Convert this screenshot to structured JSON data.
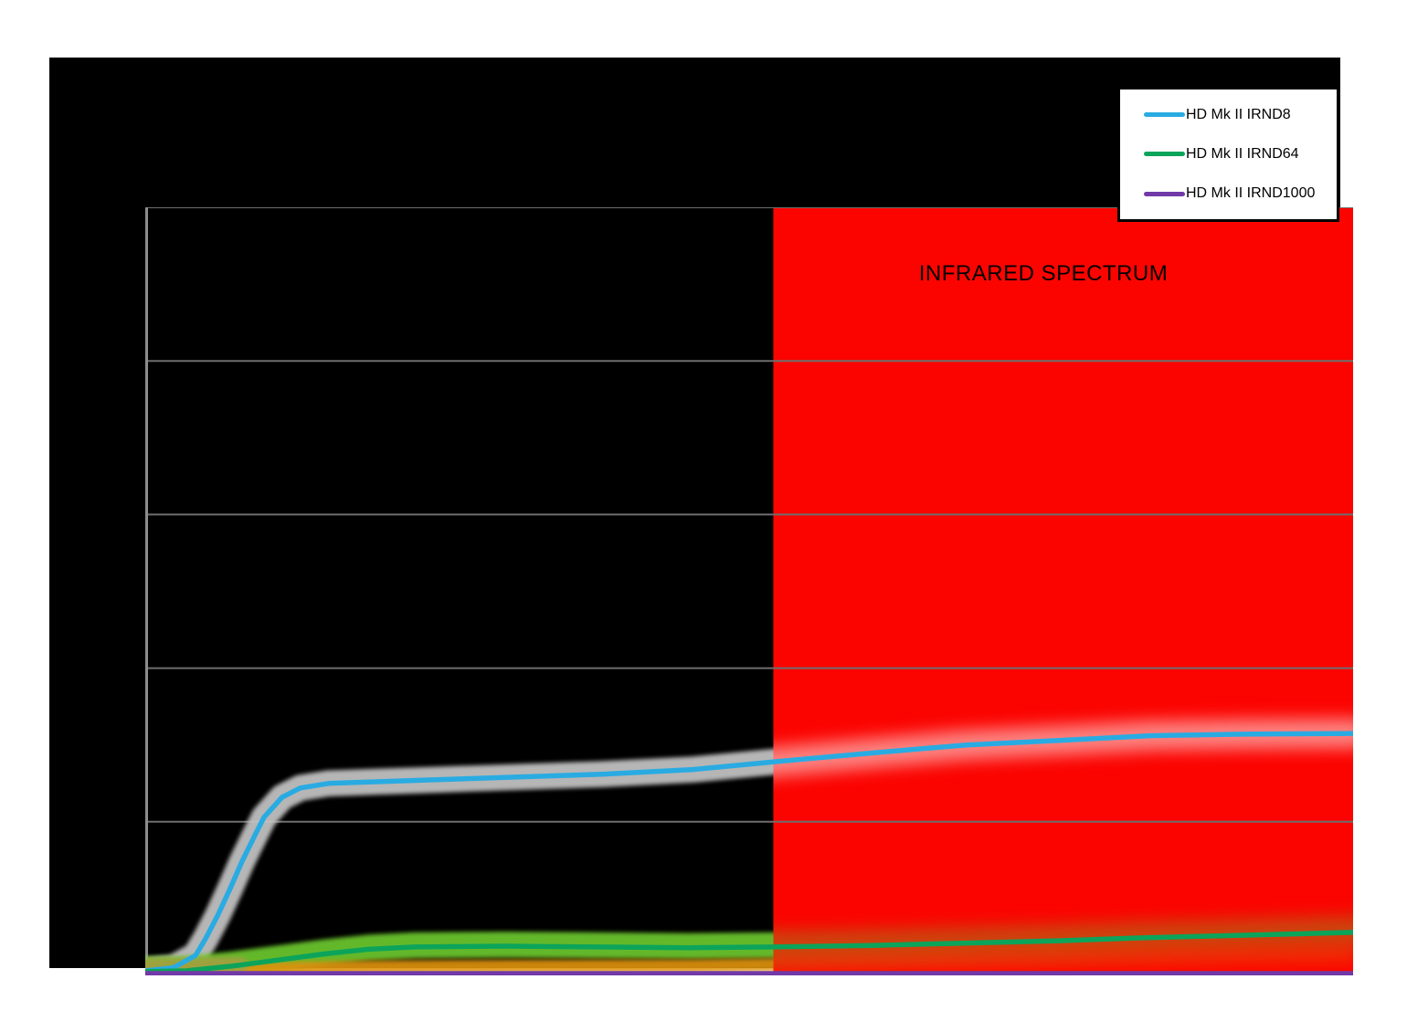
{
  "infrared_label": "INFRARED SPECTRUM",
  "legend": {
    "entries": [
      {
        "label": "HD Mk II IRND8",
        "color": "#29ABE2"
      },
      {
        "label": "HD Mk II IRND64",
        "color": "#0CA45A"
      },
      {
        "label": "HD Mk II IRND1000",
        "color": "#7239A8"
      }
    ]
  },
  "frame": {
    "page_bg": "#FFFFFF",
    "plot_bg": "#000000",
    "axis_color": "#8C8C8C",
    "gridline_color": "#6E6E6E"
  },
  "chart_data": {
    "type": "line",
    "title": "",
    "xlabel": "",
    "ylabel": "",
    "axis_tick_labels_visible": false,
    "x_range_nm_est": [
      390,
      990
    ],
    "y_range_pct_est": [
      0,
      50
    ],
    "gridlines": {
      "horizontal_fractions": [
        0,
        0.2,
        0.4,
        0.6,
        0.8,
        1.0
      ],
      "color": "#6E6E6E"
    },
    "infrared_region": {
      "label": "INFRARED SPECTRUM",
      "starts_nm_est": 702,
      "color": "#FB0400",
      "text_color": "#000000"
    },
    "legend_position": "top-right",
    "series": [
      {
        "name": "HD Mk II IRND8",
        "color": "#29ABE2",
        "x_nm": [
          390,
          404,
          415,
          420,
          426,
          432,
          438,
          444,
          449,
          458,
          467,
          481,
          503,
          526,
          572,
          617,
          662,
          702,
          753,
          798,
          844,
          889,
          935,
          990
        ],
        "transmission_pct": [
          0.3,
          0.5,
          1.3,
          2.4,
          3.9,
          5.6,
          7.4,
          9.0,
          10.3,
          11.6,
          12.2,
          12.5,
          12.6,
          12.7,
          12.9,
          13.1,
          13.4,
          13.9,
          14.5,
          15.0,
          15.3,
          15.6,
          15.7,
          15.75
        ]
      },
      {
        "name": "HD Mk II IRND64",
        "color": "#0CA45A",
        "x_nm": [
          390,
          410,
          433,
          456,
          479,
          501,
          524,
          569,
          615,
          660,
          702,
          751,
          796,
          842,
          887,
          932,
          990
        ],
        "transmission_pct": [
          0.25,
          0.3,
          0.6,
          1.0,
          1.4,
          1.7,
          1.85,
          1.9,
          1.85,
          1.8,
          1.85,
          1.95,
          2.1,
          2.25,
          2.45,
          2.6,
          2.8
        ]
      },
      {
        "name": "HD Mk II IRND1000",
        "color": "#7239A8",
        "x_nm": [
          390,
          990
        ],
        "transmission_pct": [
          0.12,
          0.12
        ]
      }
    ],
    "scatter_bands": [
      {
        "name": "irnd8-sample-spread",
        "follows": "HD Mk II IRND8",
        "color": "#C6C6C6",
        "offset_pct": 0,
        "half_width_pct": 0.85,
        "red_side_color": "#FFFFFF",
        "red_side_opacity": 0.5
      },
      {
        "name": "irnd64-sample-spread",
        "follows": "HD Mk II IRND64",
        "color": "#6CC82F",
        "offset_pct": 0.1,
        "half_width_pct": 0.85,
        "red_side_color": "#6CC82F",
        "red_side_opacity": 0.32
      },
      {
        "name": "low-transmission-spread",
        "color": "#DD9208",
        "x_nm": [
          390,
          420,
          456,
          501,
          569,
          660,
          702,
          796,
          887,
          990
        ],
        "transmission_pct": [
          0.2,
          0.3,
          0.45,
          0.55,
          0.6,
          0.62,
          0.7,
          0.9,
          1.15,
          1.35
        ],
        "half_width_pct": 0.42,
        "red_side_color": "#DD9208",
        "red_side_opacity": 0.3
      },
      {
        "name": "left-baseline-spread",
        "color": "#A0A040",
        "x_nm": [
          390,
          437
        ],
        "transmission_pct": [
          0.55,
          0.65
        ],
        "half_width_pct": 0.55,
        "black_only": true
      }
    ]
  }
}
